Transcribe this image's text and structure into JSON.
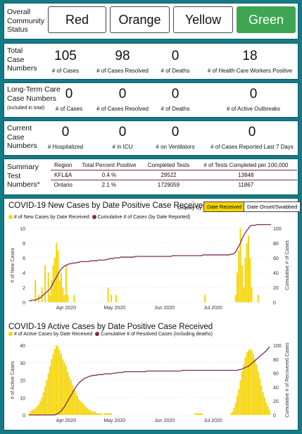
{
  "status": {
    "label": "Overall Community Status",
    "buttons": [
      {
        "label": "Red",
        "active": false
      },
      {
        "label": "Orange",
        "active": false
      },
      {
        "label": "Yellow",
        "active": false
      },
      {
        "label": "Green",
        "active": true
      }
    ]
  },
  "total": {
    "label": "Total Case Numbers",
    "items": [
      {
        "value": "105",
        "caption": "# of Cases"
      },
      {
        "value": "98",
        "caption": "# of Cases Resolved"
      },
      {
        "value": "0",
        "caption": "# of Deaths"
      },
      {
        "value": "18",
        "caption": "# of Health Care Workers Positive"
      }
    ]
  },
  "ltc": {
    "label": "Long-Term Care Case Numbers",
    "sublabel": "(included in total)",
    "items": [
      {
        "value": "0",
        "caption": "# of Cases"
      },
      {
        "value": "0",
        "caption": "# of Cases Resolved"
      },
      {
        "value": "0",
        "caption": "# of Deaths"
      },
      {
        "value": "0",
        "caption": "# of Active Outbreaks"
      }
    ]
  },
  "current": {
    "label": "Current Case Numbers",
    "items": [
      {
        "value": "0",
        "caption": "# Hospitalized"
      },
      {
        "value": "0",
        "caption": "# in ICU"
      },
      {
        "value": "0",
        "caption": "# on Ventilators"
      },
      {
        "value": "0",
        "caption": "# of Cases Reported Last 7 Days"
      }
    ]
  },
  "summary": {
    "label": "Summary Test Numbers*",
    "headers": [
      "Region",
      "Total Percent Positive",
      "Completed Tests",
      "# of Tests Completed per 100,000"
    ],
    "rows": [
      [
        "KFL&A",
        "0.4 %",
        "29522",
        "13848"
      ],
      [
        "Ontario",
        "2.1 %",
        "1729059",
        "11867"
      ]
    ]
  },
  "chart1_controls": {
    "display_by": "Display by:",
    "options": [
      {
        "label": "Date Received",
        "active": true
      },
      {
        "label": "Date Onset/Swabbed",
        "active": false
      }
    ]
  },
  "colors": {
    "bar": "#f5d400",
    "line": "#7a2a5b",
    "green": "#3ea652",
    "frame": "#147a86"
  },
  "chart_data": [
    {
      "type": "bar",
      "title": "COVID-19 New Cases by Date Positive Case Received",
      "ylabel": "# of New Cases",
      "y2label": "Cumulative # of Cases",
      "ylim": [
        0,
        10
      ],
      "y2lim": [
        0,
        100
      ],
      "yticks": [
        0,
        2,
        4,
        6,
        8,
        10
      ],
      "y2ticks": [
        0,
        20,
        40,
        60,
        80,
        100
      ],
      "x_start": "2020-03-09",
      "xticks": [
        {
          "date": "2020-04-01",
          "label": "Apr 2020"
        },
        {
          "date": "2020-05-01",
          "label": "May 2020"
        },
        {
          "date": "2020-06-01",
          "label": "Jun 2020"
        },
        {
          "date": "2020-07-01",
          "label": "Jul 2020"
        }
      ],
      "series": [
        {
          "name": "# of New Cases by Date Received",
          "type": "bar",
          "values": [
            0,
            0,
            0,
            0,
            3,
            0,
            1,
            0,
            2,
            0,
            5,
            0,
            4,
            1,
            3,
            5,
            6,
            8,
            7,
            3,
            4,
            2,
            1,
            5,
            1,
            0,
            0,
            0,
            1,
            0,
            0,
            0,
            0,
            0,
            0,
            0,
            0,
            0,
            0,
            0,
            0,
            0,
            0,
            0,
            0,
            0,
            0,
            0,
            0,
            2,
            0,
            1,
            0,
            0,
            1,
            0,
            0,
            0,
            0,
            0,
            0,
            0,
            0,
            0,
            0,
            0,
            0,
            0,
            0,
            0,
            0,
            0,
            0,
            0,
            0,
            0,
            0,
            0,
            0,
            0,
            0,
            0,
            0,
            0,
            0,
            0,
            0,
            0,
            0,
            0,
            0,
            0,
            0,
            0,
            0,
            0,
            0,
            0,
            0,
            0,
            0,
            0,
            0,
            0,
            0,
            0,
            0,
            0,
            0,
            1,
            0,
            0,
            0,
            0,
            0,
            0,
            0,
            0,
            0,
            0,
            0,
            0,
            0,
            0,
            0,
            0,
            0,
            0,
            1,
            4,
            7,
            10,
            5,
            2,
            6,
            8,
            9,
            6,
            2,
            0,
            0,
            0,
            1,
            0,
            0,
            0,
            0,
            0,
            0,
            0
          ]
        },
        {
          "name": "Cumulative # of Cases (by Date Reported)",
          "type": "line",
          "values": [
            2,
            2,
            3,
            3,
            3,
            4,
            5,
            6,
            8,
            10,
            12,
            14,
            16,
            18,
            22,
            26,
            30,
            34,
            38,
            42,
            45,
            47,
            49,
            50,
            51,
            52,
            52,
            53,
            53,
            53,
            54,
            54,
            55,
            55,
            55,
            55,
            55,
            55,
            56,
            56,
            56,
            56,
            56,
            57,
            57,
            57,
            57,
            57,
            58,
            58,
            59,
            59,
            59,
            60,
            60,
            60,
            60,
            61,
            61,
            61,
            61,
            61,
            61,
            61,
            61,
            61,
            62,
            62,
            62,
            62,
            62,
            62,
            62,
            62,
            62,
            62,
            62,
            62,
            62,
            62,
            62,
            62,
            62,
            62,
            62,
            62,
            62,
            62,
            62,
            63,
            63,
            63,
            63,
            63,
            63,
            63,
            63,
            63,
            63,
            63,
            63,
            63,
            63,
            63,
            63,
            63,
            63,
            63,
            64,
            64,
            64,
            64,
            64,
            64,
            64,
            64,
            64,
            64,
            64,
            64,
            64,
            64,
            64,
            64,
            64,
            65,
            65,
            66,
            68,
            72,
            76,
            80,
            86,
            90,
            94,
            97,
            100,
            103,
            104,
            104,
            104,
            105,
            105,
            105,
            105,
            105,
            105,
            105,
            105,
            105,
            105
          ]
        }
      ]
    },
    {
      "type": "bar",
      "title": "COVID-19 Active Cases by Date Positive Case Received",
      "ylabel": "# of Active Cases",
      "y2label": "Cumulative # of Recovered Cases",
      "ylim": [
        0,
        40
      ],
      "y2lim": [
        0,
        100
      ],
      "yticks": [
        0,
        10,
        20,
        30,
        40
      ],
      "y2ticks": [
        0,
        20,
        40,
        60,
        80,
        100
      ],
      "x_start": "2020-03-09",
      "xticks": [
        {
          "date": "2020-04-01",
          "label": "Apr 2020"
        },
        {
          "date": "2020-05-01",
          "label": "May 2020"
        },
        {
          "date": "2020-06-01",
          "label": "Jun 2020"
        },
        {
          "date": "2020-07-01",
          "label": "Jul 2020"
        }
      ],
      "series": [
        {
          "name": "# of Active Cases by Date Received",
          "type": "bar",
          "values": [
            1,
            2,
            3,
            3,
            4,
            5,
            6,
            8,
            10,
            13,
            16,
            20,
            24,
            28,
            32,
            35,
            38,
            40,
            39,
            37,
            35,
            32,
            30,
            28,
            25,
            22,
            20,
            17,
            15,
            13,
            11,
            9,
            8,
            7,
            6,
            5,
            4,
            3,
            3,
            2,
            2,
            2,
            1,
            1,
            1,
            1,
            0,
            1,
            1,
            1,
            1,
            1,
            0,
            0,
            0,
            0,
            0,
            0,
            0,
            0,
            0,
            0,
            0,
            0,
            0,
            0,
            0,
            0,
            0,
            0,
            0,
            0,
            0,
            0,
            0,
            0,
            0,
            0,
            0,
            0,
            0,
            0,
            0,
            0,
            0,
            0,
            0,
            0,
            0,
            0,
            0,
            0,
            0,
            0,
            0,
            0,
            0,
            0,
            0,
            0,
            0,
            0,
            0,
            1,
            1,
            1,
            1,
            1,
            0,
            0,
            0,
            0,
            0,
            0,
            0,
            0,
            0,
            0,
            0,
            0,
            0,
            0,
            0,
            0,
            0,
            1,
            2,
            4,
            7,
            11,
            15,
            20,
            25,
            29,
            33,
            36,
            37,
            38,
            37,
            35,
            32,
            29,
            25,
            21,
            17,
            13,
            10,
            7,
            5,
            3
          ]
        },
        {
          "name": "Cumulative # of Resolved Cases (including deaths)",
          "type": "line",
          "values": [
            0,
            0,
            0,
            0,
            0,
            0,
            0,
            0,
            0,
            0,
            0,
            0,
            0,
            0,
            0,
            0,
            0,
            1,
            2,
            4,
            6,
            9,
            12,
            16,
            20,
            24,
            28,
            32,
            36,
            40,
            43,
            46,
            48,
            50,
            52,
            53,
            54,
            55,
            56,
            56,
            57,
            57,
            57,
            58,
            58,
            58,
            58,
            59,
            59,
            59,
            59,
            59,
            60,
            60,
            60,
            61,
            61,
            61,
            61,
            62,
            62,
            62,
            62,
            62,
            62,
            62,
            62,
            62,
            62,
            62,
            62,
            62,
            62,
            63,
            63,
            63,
            63,
            63,
            63,
            63,
            63,
            63,
            63,
            63,
            63,
            63,
            63,
            63,
            63,
            63,
            63,
            63,
            63,
            63,
            63,
            64,
            64,
            64,
            64,
            64,
            64,
            64,
            64,
            64,
            64,
            64,
            64,
            64,
            64,
            64,
            64,
            64,
            64,
            64,
            64,
            64,
            64,
            64,
            64,
            64,
            64,
            64,
            64,
            64,
            64,
            64,
            64,
            64,
            64,
            64,
            65,
            65,
            66,
            67,
            68,
            69,
            70,
            72,
            74,
            76,
            78,
            80,
            82,
            84,
            86,
            88,
            90,
            92,
            95,
            98
          ]
        }
      ]
    }
  ]
}
